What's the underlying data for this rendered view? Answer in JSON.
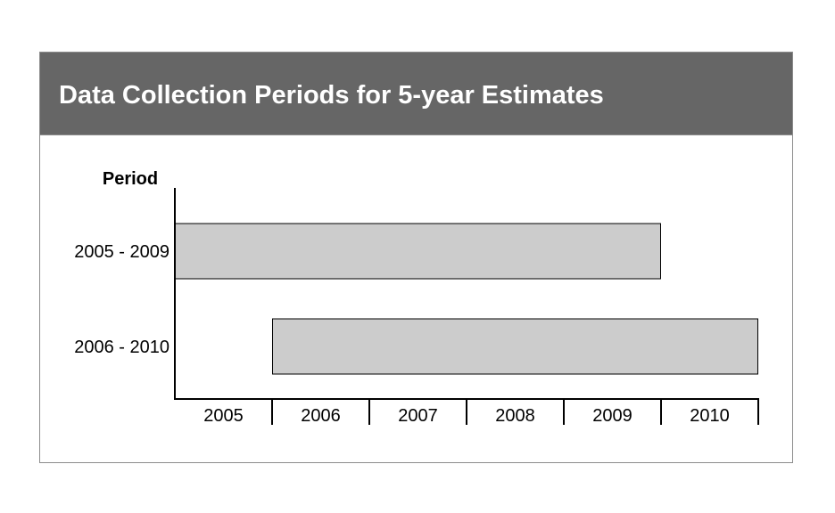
{
  "header": {
    "title": "Data Collection Periods for 5-year Estimates"
  },
  "chart_data": {
    "type": "bar",
    "orientation": "horizontal",
    "ylabel": "Period",
    "xlabel": "",
    "categories": [
      "2005 - 2009",
      "2006 - 2010"
    ],
    "series": [
      {
        "bars": [
          {
            "category": "2005 - 2009",
            "start": 2005,
            "end": 2010
          },
          {
            "category": "2006 - 2010",
            "start": 2006,
            "end": 2011
          }
        ]
      }
    ],
    "x_ticks": [
      "2005",
      "2006",
      "2007",
      "2008",
      "2009",
      "2010"
    ],
    "xlim": [
      2005,
      2011
    ],
    "grid": false,
    "legend": "none",
    "colors": {
      "bar_fill": "#cccccc",
      "bar_stroke": "#000000",
      "header_bg": "#666666",
      "title_text": "#ffffff"
    }
  }
}
